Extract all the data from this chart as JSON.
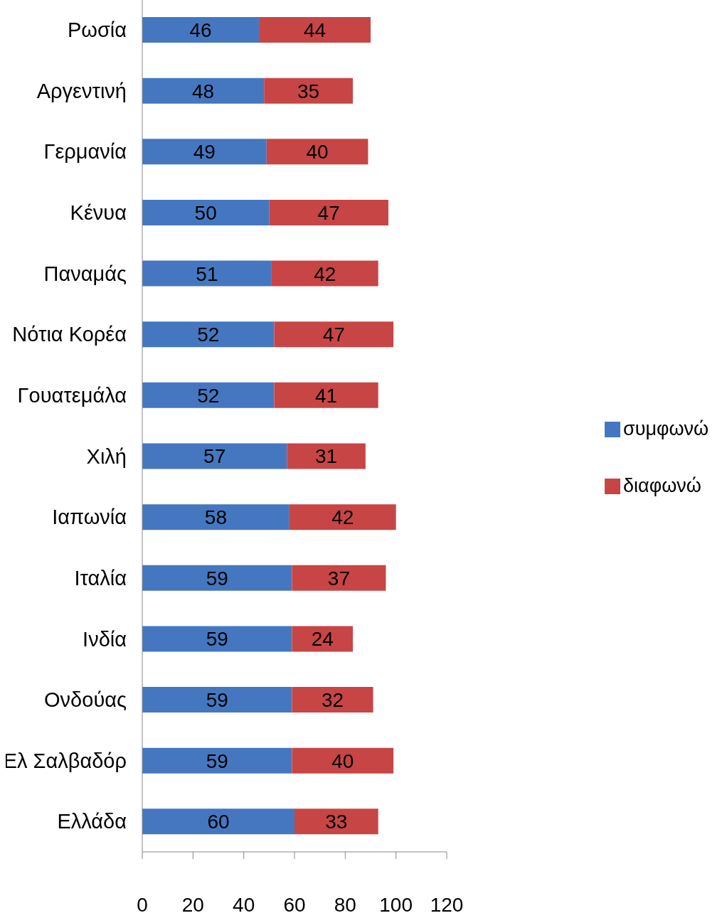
{
  "chart_data": {
    "type": "bar",
    "orientation": "horizontal",
    "stacked": true,
    "categories": [
      "Ρωσία",
      "Αργεντινή",
      "Γερμανία",
      "Κένυα",
      "Παναμάς",
      "Νότια Κορέα",
      "Γουατεμάλα",
      "Χιλή",
      "Ιαπωνία",
      "Ιταλία",
      "Ινδία",
      "Ονδούας",
      "Ελ Σαλβαδόρ",
      "Ελλάδα"
    ],
    "series": [
      {
        "name": "συμφωνώ",
        "color": "#4477c0",
        "values": [
          46,
          48,
          49,
          50,
          51,
          52,
          52,
          57,
          58,
          59,
          59,
          59,
          59,
          60
        ]
      },
      {
        "name": "διαφωνώ",
        "color": "#c84545",
        "values": [
          44,
          35,
          40,
          47,
          42,
          47,
          41,
          31,
          42,
          37,
          24,
          32,
          40,
          33
        ]
      }
    ],
    "xlim": [
      0,
      120
    ],
    "xticks": [
      0,
      20,
      40,
      60,
      80,
      100,
      120
    ],
    "data_labels": true,
    "legend": "right",
    "grid": false
  }
}
